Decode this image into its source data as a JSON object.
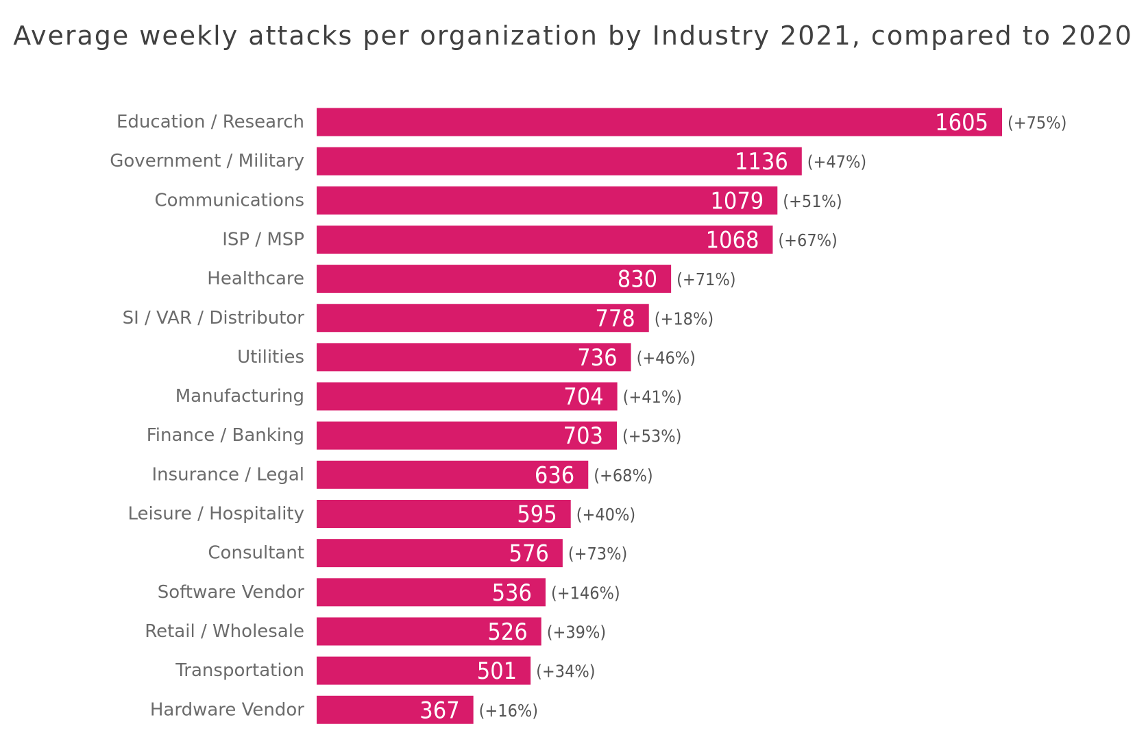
{
  "chart_data": {
    "type": "bar",
    "orientation": "horizontal",
    "title": "Average weekly attacks per organization by Industry 2021, compared to 2020",
    "xlabel": "",
    "ylabel": "",
    "categories": [
      "Education / Research",
      "Government / Military",
      "Communications",
      "ISP / MSP",
      "Healthcare",
      "SI / VAR / Distributor",
      "Utilities",
      "Manufacturing",
      "Finance / Banking",
      "Insurance / Legal",
      "Leisure / Hospitality",
      "Consultant",
      "Software Vendor",
      "Retail / Wholesale",
      "Transportation",
      "Hardware Vendor"
    ],
    "values": [
      1605,
      1136,
      1079,
      1068,
      830,
      778,
      736,
      704,
      703,
      636,
      595,
      576,
      536,
      526,
      501,
      367
    ],
    "change_labels": [
      "(+75%)",
      "(+47%)",
      "(+51%)",
      "(+67%)",
      "(+71%)",
      "(+18%)",
      "(+46%)",
      "(+41%)",
      "(+53%)",
      "(+68%)",
      "(+40%)",
      "(+73%)",
      "(+146%)",
      "(+39%)",
      "(+34%)",
      "(+16%)"
    ],
    "xlim": [
      0,
      1605
    ],
    "grid": false,
    "legend": "none",
    "bar_color": "#d81b6a"
  }
}
